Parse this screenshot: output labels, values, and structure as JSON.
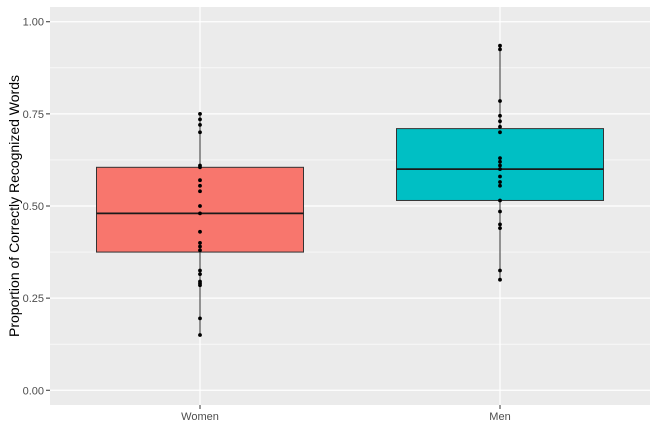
{
  "chart_data": {
    "type": "box",
    "title": "",
    "xlabel": "",
    "ylabel": "Proportion of Correctly Recognized Words",
    "ylim": [
      -0.04,
      1.04
    ],
    "y_ticks": [
      0.0,
      0.25,
      0.5,
      0.75,
      1.0
    ],
    "y_tick_labels": [
      "0.00",
      "0.25",
      "0.50",
      "0.75",
      "1.00"
    ],
    "categories": [
      "Women",
      "Men"
    ],
    "grid": true,
    "legend": "none",
    "boxes": [
      {
        "category": "Women",
        "color": "#F8766D",
        "whisker_low": 0.15,
        "q1": 0.375,
        "median": 0.48,
        "q3": 0.605,
        "whisker_high": 0.75,
        "points": [
          0.75,
          0.735,
          0.72,
          0.7,
          0.61,
          0.605,
          0.57,
          0.555,
          0.54,
          0.5,
          0.48,
          0.43,
          0.4,
          0.39,
          0.38,
          0.325,
          0.315,
          0.295,
          0.29,
          0.285,
          0.195,
          0.15
        ]
      },
      {
        "category": "Men",
        "color": "#00BFC4",
        "whisker_low": 0.3,
        "q1": 0.515,
        "median": 0.6,
        "q3": 0.71,
        "whisker_high": 0.935,
        "points": [
          0.935,
          0.925,
          0.785,
          0.745,
          0.73,
          0.715,
          0.7,
          0.63,
          0.62,
          0.61,
          0.6,
          0.58,
          0.565,
          0.555,
          0.515,
          0.485,
          0.45,
          0.44,
          0.325,
          0.3
        ]
      }
    ]
  }
}
